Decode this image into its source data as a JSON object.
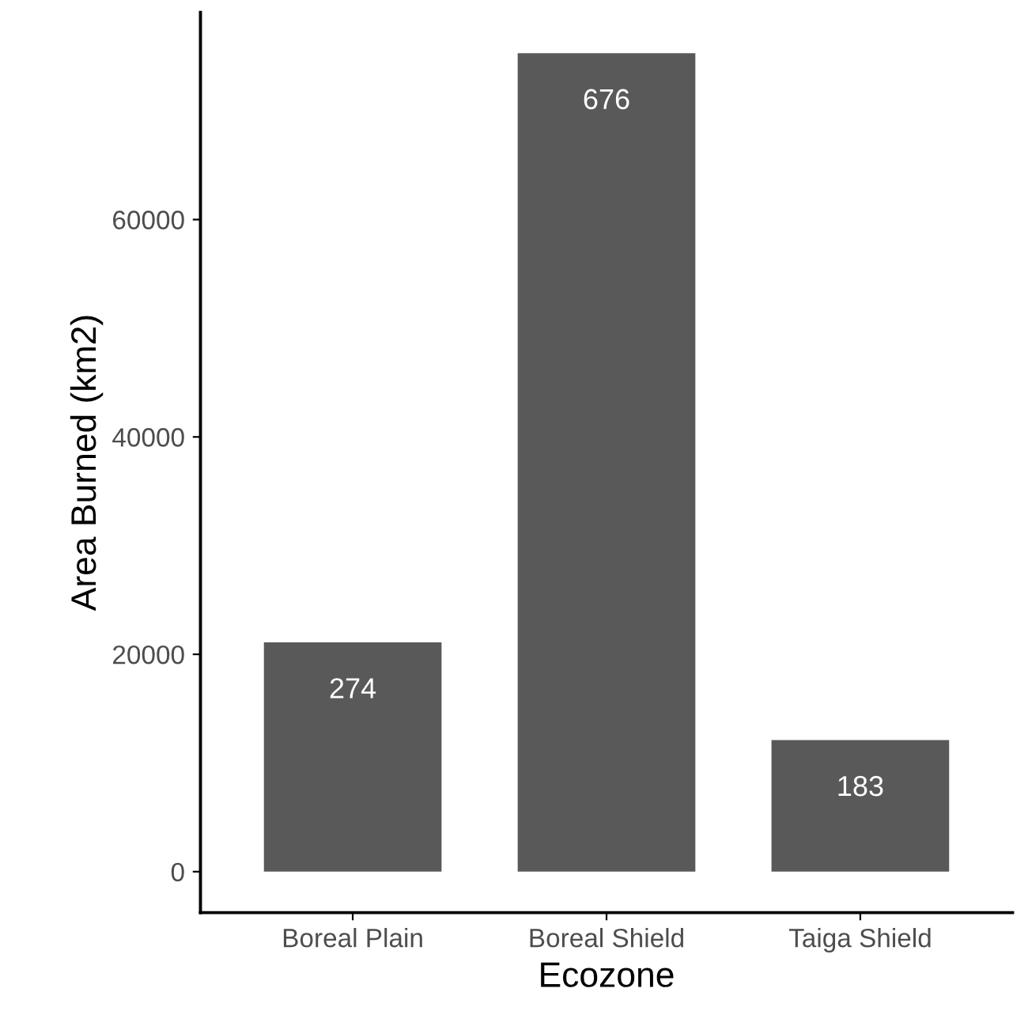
{
  "chart_data": {
    "type": "bar",
    "xlabel": "Ecozone",
    "ylabel": "Area Burned (km2)",
    "categories": [
      "Boreal Plain",
      "Boreal Shield",
      "Taiga Shield"
    ],
    "values": [
      21100,
      75300,
      12100
    ],
    "annotations": [
      {
        "text": "274",
        "x": "Boreal Plain",
        "y": 21100
      },
      {
        "text": "676",
        "x": "Boreal Shield",
        "y": 75300
      },
      {
        "text": "183",
        "x": "Taiga Shield",
        "y": 12100
      }
    ],
    "color": "#595959",
    "ylim": [
      -3765,
      79065
    ],
    "yticks": [
      0,
      20000,
      40000,
      60000
    ],
    "grid": false
  }
}
